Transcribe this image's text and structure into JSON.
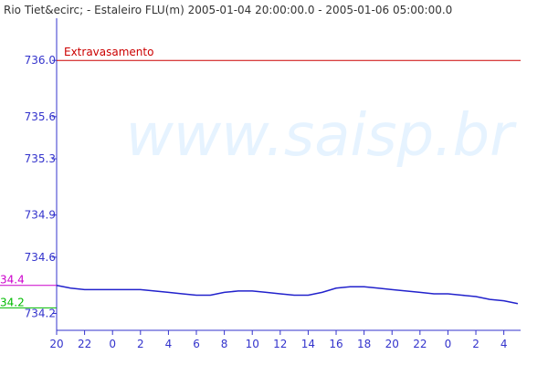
{
  "chart_data": {
    "type": "line",
    "title": "Rio Tiet&ecirc; - Estaleiro FLU(m) 2005-01-04 20:00:00.0 - 2005-01-06 05:00:00.0",
    "watermark": "www.saisp.br",
    "x": [
      0,
      1,
      2,
      3,
      4,
      5,
      6,
      7,
      8,
      9,
      10,
      11,
      12,
      13,
      14,
      15,
      16,
      17,
      18,
      19,
      20,
      21,
      22,
      23,
      24,
      25,
      26,
      27,
      28,
      29,
      30,
      31,
      32,
      33
    ],
    "series": [
      {
        "color": "#2222cc",
        "values": [
          734.4,
          734.38,
          734.37,
          734.37,
          734.37,
          734.37,
          734.37,
          734.36,
          734.35,
          734.34,
          734.33,
          734.33,
          734.35,
          734.36,
          734.36,
          734.35,
          734.34,
          734.33,
          734.33,
          734.35,
          734.38,
          734.39,
          734.39,
          734.38,
          734.37,
          734.36,
          734.35,
          734.34,
          734.34,
          734.33,
          734.32,
          734.3,
          734.29,
          734.27
        ]
      }
    ],
    "xlim": [
      0,
      33.2
    ],
    "xticks": [
      {
        "value": 0,
        "label": "20"
      },
      {
        "value": 2,
        "label": "22"
      },
      {
        "value": 4,
        "label": "0"
      },
      {
        "value": 6,
        "label": "2"
      },
      {
        "value": 8,
        "label": "4"
      },
      {
        "value": 10,
        "label": "6"
      },
      {
        "value": 12,
        "label": "8"
      },
      {
        "value": 14,
        "label": "10"
      },
      {
        "value": 16,
        "label": "12"
      },
      {
        "value": 18,
        "label": "14"
      },
      {
        "value": 20,
        "label": "16"
      },
      {
        "value": 22,
        "label": "18"
      },
      {
        "value": 24,
        "label": "20"
      },
      {
        "value": 26,
        "label": "22"
      },
      {
        "value": 28,
        "label": "0"
      },
      {
        "value": 30,
        "label": "2"
      },
      {
        "value": 32,
        "label": "4"
      }
    ],
    "ylim": [
      734.08,
      736.3
    ],
    "yticks": [
      {
        "value": 736.0,
        "label": "736.0"
      },
      735.6,
      735.3,
      734.9,
      734.6,
      734.2
    ],
    "axis_color": "#3333cc",
    "reference_lines": [
      {
        "label": "Extravasamento",
        "value": 736.0,
        "color": "#cc0000"
      },
      {
        "label": "34.4",
        "value": 734.4,
        "color": "#cc00cc"
      },
      {
        "label": "34.2",
        "value": 734.24,
        "color": "#00bb00"
      }
    ]
  }
}
